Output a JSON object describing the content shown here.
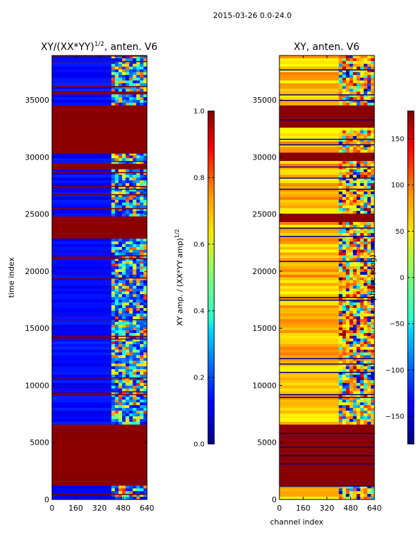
{
  "suptitle": "2015-03-26 0.0-24.0",
  "chart_data": [
    {
      "type": "heatmap",
      "title_main": "XY/(XX*YY)",
      "title_sup": "1/2",
      "title_rest": ", anten. V6",
      "xlabel": "",
      "ylabel": "time index",
      "xlim": [
        0,
        640
      ],
      "ylim": [
        0,
        38900
      ],
      "xticks": [
        0,
        160,
        320,
        480,
        640
      ],
      "yticks": [
        0,
        5000,
        10000,
        15000,
        20000,
        25000,
        30000,
        35000
      ],
      "colormap": "jet",
      "background_band_value": 0.1,
      "feature_channel_range": [
        400,
        640
      ],
      "saturated_time_ranges": [
        [
          1100,
          6600
        ],
        [
          22900,
          24900
        ],
        [
          29000,
          29500
        ],
        [
          30300,
          34500
        ],
        [
          35400,
          35700
        ]
      ],
      "colorbar": {
        "range": [
          0.0,
          1.0
        ],
        "ticks": [
          "0.0",
          "0.2",
          "0.4",
          "0.6",
          "0.8",
          "1.0"
        ],
        "label_main": "XY amp. / (XX*YY amp)",
        "label_sup": "1/2"
      }
    },
    {
      "type": "heatmap",
      "title": "XY, anten. V6",
      "xlabel": "channel index",
      "ylabel": "",
      "xlim": [
        0,
        640
      ],
      "ylim": [
        0,
        38900
      ],
      "xticks": [
        0,
        160,
        320,
        480,
        640
      ],
      "yticks": [
        0,
        5000,
        10000,
        15000,
        20000,
        25000,
        30000,
        35000
      ],
      "colormap": "jet",
      "feature_channel_range": [
        400,
        640
      ],
      "saturated_time_ranges": [
        [
          1100,
          6600
        ],
        [
          24300,
          25100
        ],
        [
          29600,
          30300
        ],
        [
          32500,
          34500
        ]
      ],
      "colorbar": {
        "range": [
          -180,
          180
        ],
        "ticks": [
          "-150",
          "-100",
          "-50",
          "0",
          "50",
          "100",
          "150"
        ],
        "label": "phase (deg)"
      }
    }
  ]
}
